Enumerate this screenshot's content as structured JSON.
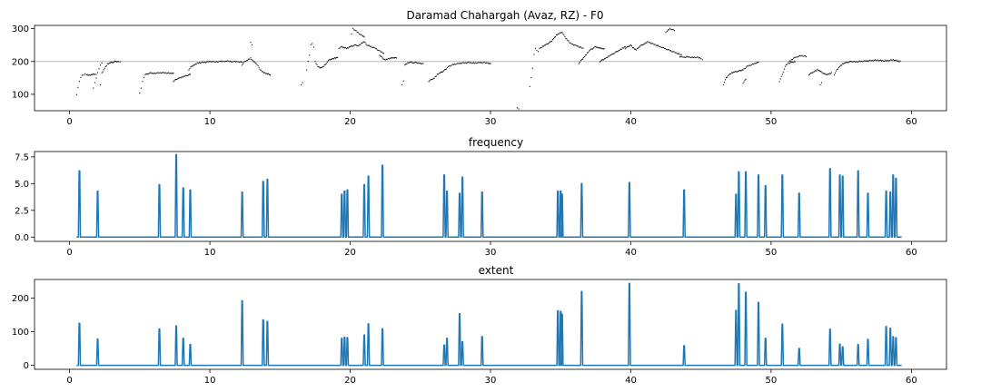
{
  "chart_data": [
    {
      "type": "scatter",
      "title": "Daramad Chahargah (Avaz, RZ) - F0",
      "xlim": [
        -2.5,
        62.5
      ],
      "ylim": [
        50,
        310
      ],
      "xticks": [
        0,
        10,
        20,
        30,
        40,
        50,
        60
      ],
      "yticks": [
        100,
        200,
        300
      ],
      "reference_line_y": 200,
      "marker_color": "#000000",
      "segments": [
        {
          "x": [
            0.5,
            0.6,
            0.7,
            0.8,
            0.9,
            1.0,
            1.1,
            1.2,
            1.4,
            1.6,
            1.8,
            1.9
          ],
          "y": [
            100,
            120,
            140,
            150,
            158,
            160,
            162,
            160,
            158,
            160,
            162,
            160
          ]
        },
        {
          "x": [
            1.7,
            1.8,
            1.9,
            2.0,
            2.1,
            2.2,
            2.3
          ],
          "y": [
            120,
            135,
            150,
            165,
            178,
            190,
            195
          ]
        },
        {
          "x": [
            2.2,
            2.3,
            2.5,
            2.7,
            2.9,
            3.1,
            3.3,
            3.5,
            3.6
          ],
          "y": [
            130,
            165,
            180,
            192,
            196,
            198,
            200,
            200,
            198
          ]
        },
        {
          "x": [
            5.0,
            5.1,
            5.2,
            5.3,
            5.4,
            5.6,
            5.8,
            6.0,
            6.3,
            6.6,
            6.9,
            7.2,
            7.4
          ],
          "y": [
            105,
            118,
            140,
            150,
            160,
            163,
            165,
            164,
            165,
            166,
            165,
            164,
            165
          ]
        },
        {
          "x": [
            7.4,
            7.6,
            7.8,
            8.0,
            8.2,
            8.4,
            8.6
          ],
          "y": [
            140,
            145,
            150,
            152,
            155,
            158,
            160
          ]
        },
        {
          "x": [
            8.5,
            8.7,
            8.9,
            9.1,
            9.4,
            9.7,
            10.0,
            10.4,
            10.8,
            11.2,
            11.6,
            12.0,
            12.3
          ],
          "y": [
            175,
            185,
            190,
            195,
            197,
            198,
            200,
            199,
            200,
            201,
            200,
            199,
            198
          ]
        },
        {
          "x": [
            12.3,
            12.5,
            12.7,
            12.9,
            13.1,
            13.3,
            13.5,
            13.7,
            13.9,
            14.1,
            14.3
          ],
          "y": [
            190,
            200,
            205,
            210,
            200,
            195,
            180,
            170,
            165,
            162,
            160
          ]
        },
        {
          "x": [
            12.9,
            13.0
          ],
          "y": [
            260,
            250
          ]
        },
        {
          "x": [
            16.5,
            16.6
          ],
          "y": [
            130,
            135
          ]
        },
        {
          "x": [
            16.9,
            17.0,
            17.1,
            17.2,
            17.3,
            17.4,
            17.5,
            17.7,
            17.9,
            18.1,
            18.3,
            18.5,
            18.7,
            18.9,
            19.1
          ],
          "y": [
            175,
            200,
            220,
            250,
            255,
            245,
            200,
            185,
            180,
            185,
            195,
            205,
            208,
            210,
            212
          ]
        },
        {
          "x": [
            19.2,
            19.4,
            19.6,
            19.8,
            20.0,
            20.2,
            20.4,
            20.6,
            20.8,
            21.0,
            21.2,
            21.5,
            21.8,
            22.1,
            22.4
          ],
          "y": [
            240,
            245,
            242,
            240,
            245,
            248,
            250,
            248,
            255,
            260,
            250,
            245,
            240,
            232,
            225
          ]
        },
        {
          "x": [
            20.1,
            20.2,
            20.5,
            20.8,
            21.0
          ],
          "y": [
            285,
            300,
            290,
            280,
            275
          ]
        },
        {
          "x": [
            22.1,
            22.3,
            22.5,
            22.7,
            22.9,
            23.1,
            23.3
          ],
          "y": [
            220,
            210,
            205,
            208,
            210,
            212,
            210
          ]
        },
        {
          "x": [
            23.7,
            23.8,
            23.9,
            24.1,
            24.3,
            24.5,
            24.7,
            24.9,
            25.2
          ],
          "y": [
            130,
            140,
            190,
            195,
            198,
            196,
            197,
            195,
            193
          ]
        },
        {
          "x": [
            25.6,
            25.8,
            26.0,
            26.2,
            26.4,
            26.6,
            26.8,
            27.0,
            27.3,
            27.6,
            27.9,
            28.2,
            28.5,
            28.8,
            29.1,
            29.4,
            29.8,
            30.0
          ],
          "y": [
            140,
            145,
            150,
            160,
            165,
            170,
            175,
            185,
            190,
            193,
            195,
            196,
            197,
            195,
            196,
            197,
            195,
            194
          ]
        },
        {
          "x": [
            31.9,
            32.0
          ],
          "y": [
            60,
            55
          ]
        },
        {
          "x": [
            32.8,
            32.9,
            33.0,
            33.1,
            33.2,
            33.3,
            33.4,
            33.5,
            33.7,
            33.9,
            34.1,
            34.3,
            34.5,
            34.7,
            34.9,
            35.1,
            35.3,
            35.5,
            35.7,
            36.0,
            36.3,
            36.6
          ],
          "y": [
            125,
            150,
            180,
            220,
            240,
            235,
            230,
            240,
            245,
            250,
            255,
            260,
            270,
            280,
            285,
            290,
            275,
            265,
            255,
            250,
            245,
            240
          ]
        },
        {
          "x": [
            36.3,
            36.5,
            36.7,
            36.9,
            37.1,
            37.3,
            37.5,
            37.7,
            37.9,
            38.1
          ],
          "y": [
            195,
            205,
            215,
            225,
            235,
            240,
            245,
            242,
            240,
            238
          ]
        },
        {
          "x": [
            37.8,
            38.0,
            38.2,
            38.4,
            38.6,
            38.8,
            39.0,
            39.2,
            39.4,
            39.6
          ],
          "y": [
            200,
            205,
            210,
            215,
            220,
            225,
            230,
            235,
            240,
            245
          ]
        },
        {
          "x": [
            39.6,
            39.8,
            40.0,
            40.2,
            40.4,
            40.6,
            40.8,
            41.0,
            41.2,
            41.5,
            41.8,
            42.1,
            42.4,
            42.7,
            43.0,
            43.3,
            43.6
          ],
          "y": [
            240,
            245,
            250,
            240,
            235,
            245,
            250,
            255,
            260,
            255,
            250,
            245,
            240,
            235,
            230,
            225,
            220
          ]
        },
        {
          "x": [
            42.5,
            42.8,
            43.1
          ],
          "y": [
            290,
            300,
            295
          ]
        },
        {
          "x": [
            43.5,
            43.8,
            44.1,
            44.4,
            44.7,
            45.0,
            45.1
          ],
          "y": [
            215,
            213,
            214,
            212,
            213,
            210,
            205
          ]
        },
        {
          "x": [
            46.6,
            46.8,
            47.0,
            47.2,
            47.4,
            47.6,
            47.8,
            48.0,
            48.3,
            48.6,
            48.9,
            49.1
          ],
          "y": [
            130,
            150,
            160,
            165,
            168,
            170,
            172,
            175,
            185,
            190,
            195,
            197
          ]
        },
        {
          "x": [
            48.0,
            48.2
          ],
          "y": [
            135,
            145
          ]
        },
        {
          "x": [
            50.6,
            50.8,
            51.0,
            51.3,
            51.6,
            51.9,
            52.2,
            52.5
          ],
          "y": [
            140,
            160,
            185,
            200,
            210,
            215,
            218,
            215
          ]
        },
        {
          "x": [
            51.3,
            51.5,
            51.7
          ],
          "y": [
            195,
            198,
            200
          ]
        },
        {
          "x": [
            52.7,
            52.9,
            53.1,
            53.3,
            53.5,
            53.7,
            53.9,
            54.1,
            54.3
          ],
          "y": [
            160,
            165,
            170,
            175,
            170,
            165,
            160,
            162,
            165
          ]
        },
        {
          "x": [
            53.5,
            53.6
          ],
          "y": [
            130,
            135
          ]
        },
        {
          "x": [
            54.5,
            54.7,
            54.9,
            55.1,
            55.3,
            55.5,
            55.7,
            56.0,
            56.3,
            56.6,
            56.9,
            57.2,
            57.5,
            57.8,
            58.1,
            58.4,
            58.7,
            59.0,
            59.2
          ],
          "y": [
            160,
            175,
            185,
            192,
            196,
            198,
            200,
            199,
            200,
            201,
            202,
            203,
            204,
            203,
            202,
            203,
            205,
            202,
            200
          ]
        }
      ]
    },
    {
      "type": "line",
      "title": "frequency",
      "xlim": [
        -2.5,
        62.5
      ],
      "ylim": [
        -0.4,
        8.0
      ],
      "xticks": [
        0,
        10,
        20,
        30,
        40,
        50,
        60
      ],
      "yticks": [
        0.0,
        2.5,
        5.0,
        7.5
      ],
      "ytick_labels": [
        "0.0",
        "2.5",
        "5.0",
        "7.5"
      ],
      "x_start": 0.5,
      "x_end": 59.3,
      "baseline": 0,
      "line_color": "#1f77b4",
      "peaks": [
        {
          "x": 0.7,
          "y": 6.2
        },
        {
          "x": 2.0,
          "y": 4.3
        },
        {
          "x": 6.4,
          "y": 4.9
        },
        {
          "x": 7.6,
          "y": 7.7
        },
        {
          "x": 8.1,
          "y": 4.6
        },
        {
          "x": 8.6,
          "y": 4.4
        },
        {
          "x": 12.3,
          "y": 4.2
        },
        {
          "x": 13.8,
          "y": 5.2
        },
        {
          "x": 14.1,
          "y": 5.4
        },
        {
          "x": 19.4,
          "y": 4.0
        },
        {
          "x": 19.6,
          "y": 4.3
        },
        {
          "x": 19.8,
          "y": 4.4
        },
        {
          "x": 21.0,
          "y": 4.9
        },
        {
          "x": 21.3,
          "y": 5.7
        },
        {
          "x": 22.3,
          "y": 6.7
        },
        {
          "x": 26.7,
          "y": 5.8
        },
        {
          "x": 26.9,
          "y": 4.3
        },
        {
          "x": 27.8,
          "y": 4.1
        },
        {
          "x": 28.0,
          "y": 5.6
        },
        {
          "x": 29.4,
          "y": 4.2
        },
        {
          "x": 34.8,
          "y": 4.3
        },
        {
          "x": 35.0,
          "y": 4.3
        },
        {
          "x": 35.1,
          "y": 4.0
        },
        {
          "x": 36.5,
          "y": 5.0
        },
        {
          "x": 39.9,
          "y": 5.1
        },
        {
          "x": 43.8,
          "y": 4.4
        },
        {
          "x": 47.5,
          "y": 4.0
        },
        {
          "x": 47.7,
          "y": 6.1
        },
        {
          "x": 48.2,
          "y": 6.1
        },
        {
          "x": 49.1,
          "y": 5.8
        },
        {
          "x": 49.6,
          "y": 4.8
        },
        {
          "x": 50.8,
          "y": 5.8
        },
        {
          "x": 52.0,
          "y": 4.1
        },
        {
          "x": 54.2,
          "y": 6.4
        },
        {
          "x": 54.9,
          "y": 5.8
        },
        {
          "x": 55.1,
          "y": 5.7
        },
        {
          "x": 56.2,
          "y": 6.2
        },
        {
          "x": 56.9,
          "y": 4.1
        },
        {
          "x": 58.2,
          "y": 4.3
        },
        {
          "x": 58.5,
          "y": 4.2
        },
        {
          "x": 58.7,
          "y": 5.8
        },
        {
          "x": 58.9,
          "y": 5.5
        }
      ]
    },
    {
      "type": "line",
      "title": "extent",
      "xlim": [
        -2.5,
        62.5
      ],
      "ylim": [
        -12,
        255
      ],
      "xticks": [
        0,
        10,
        20,
        30,
        40,
        50,
        60
      ],
      "yticks": [
        0,
        100,
        200
      ],
      "x_start": 0.5,
      "x_end": 59.3,
      "baseline": 0,
      "line_color": "#1f77b4",
      "peaks": [
        {
          "x": 0.7,
          "y": 125
        },
        {
          "x": 2.0,
          "y": 78
        },
        {
          "x": 6.4,
          "y": 108
        },
        {
          "x": 7.6,
          "y": 117
        },
        {
          "x": 8.1,
          "y": 80
        },
        {
          "x": 8.6,
          "y": 62
        },
        {
          "x": 12.3,
          "y": 192
        },
        {
          "x": 13.8,
          "y": 135
        },
        {
          "x": 14.1,
          "y": 130
        },
        {
          "x": 19.4,
          "y": 80
        },
        {
          "x": 19.6,
          "y": 83
        },
        {
          "x": 19.8,
          "y": 82
        },
        {
          "x": 21.0,
          "y": 90
        },
        {
          "x": 21.3,
          "y": 123
        },
        {
          "x": 22.3,
          "y": 108
        },
        {
          "x": 26.7,
          "y": 60
        },
        {
          "x": 26.9,
          "y": 80
        },
        {
          "x": 27.8,
          "y": 153
        },
        {
          "x": 28.0,
          "y": 70
        },
        {
          "x": 29.4,
          "y": 85
        },
        {
          "x": 34.8,
          "y": 162
        },
        {
          "x": 35.0,
          "y": 160
        },
        {
          "x": 35.1,
          "y": 152
        },
        {
          "x": 36.5,
          "y": 219
        },
        {
          "x": 39.9,
          "y": 243
        },
        {
          "x": 43.8,
          "y": 58
        },
        {
          "x": 47.5,
          "y": 163
        },
        {
          "x": 47.7,
          "y": 242
        },
        {
          "x": 48.2,
          "y": 217
        },
        {
          "x": 49.1,
          "y": 187
        },
        {
          "x": 49.6,
          "y": 80
        },
        {
          "x": 50.8,
          "y": 122
        },
        {
          "x": 52.0,
          "y": 50
        },
        {
          "x": 54.2,
          "y": 107
        },
        {
          "x": 54.9,
          "y": 63
        },
        {
          "x": 55.1,
          "y": 55
        },
        {
          "x": 56.2,
          "y": 62
        },
        {
          "x": 56.9,
          "y": 77
        },
        {
          "x": 58.2,
          "y": 115
        },
        {
          "x": 58.5,
          "y": 110
        },
        {
          "x": 58.7,
          "y": 85
        },
        {
          "x": 58.9,
          "y": 82
        }
      ]
    }
  ]
}
